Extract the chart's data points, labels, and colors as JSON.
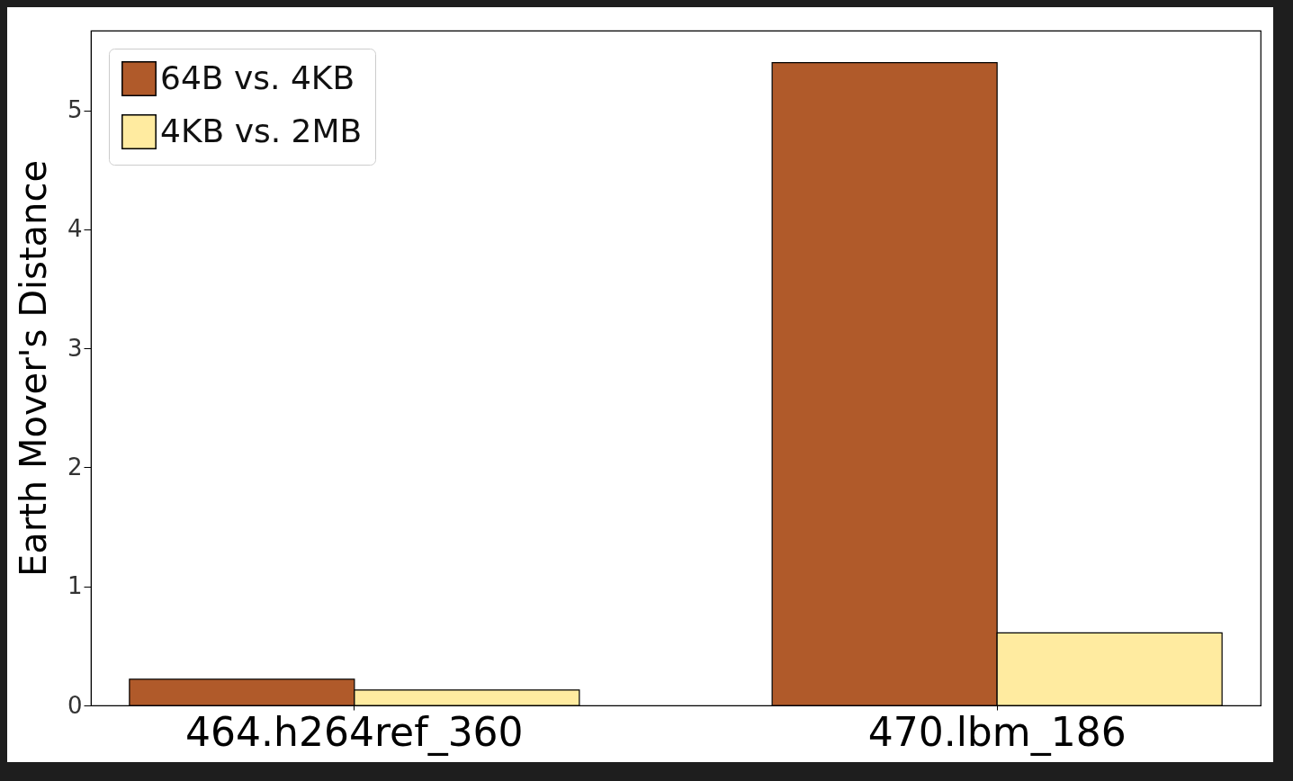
{
  "chart_data": {
    "type": "bar",
    "ylabel": "Earth Mover's Distance",
    "categories": [
      "464.h264ref_360",
      "470.lbm_186"
    ],
    "series": [
      {
        "name": "64B vs. 4KB",
        "color": "#b05a2a",
        "values": [
          0.22,
          5.4
        ]
      },
      {
        "name": "4KB vs. 2MB",
        "color": "#ffeba0",
        "values": [
          0.13,
          0.61
        ]
      }
    ],
    "ylim": [
      0,
      5.67
    ],
    "yticks": [
      0,
      1,
      2,
      3,
      4,
      5
    ],
    "grid": false,
    "legend": "top left"
  }
}
